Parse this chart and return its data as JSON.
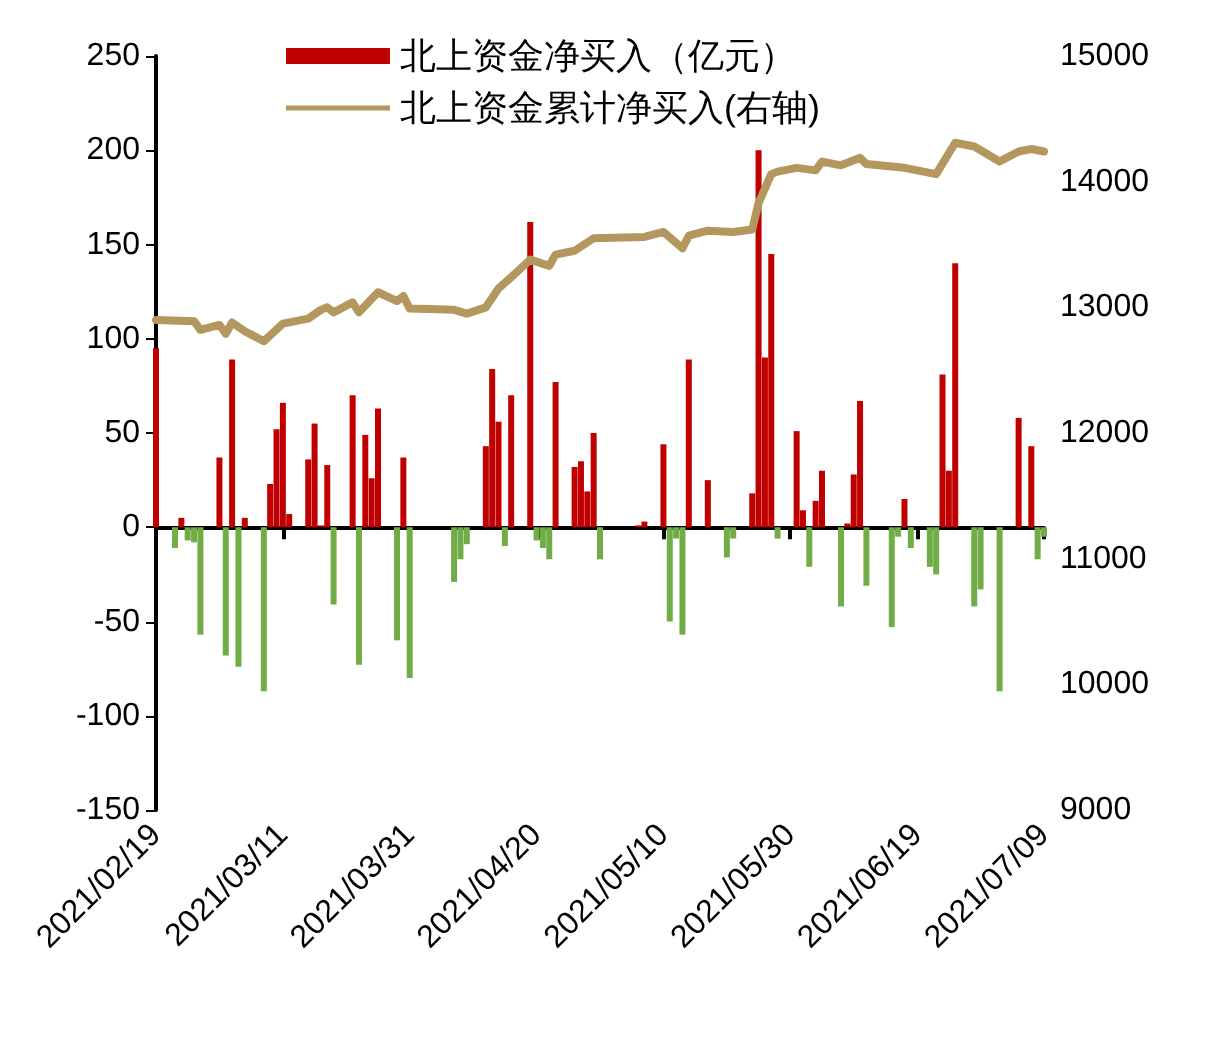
{
  "chart_data": {
    "type": "bar",
    "series": [
      {
        "name": "北上资金净买入（亿元）",
        "color": "#c00000",
        "x": [
          "2021-02-19",
          "2021-02-23",
          "2021-03-01",
          "2021-03-03",
          "2021-03-05",
          "2021-03-09",
          "2021-03-10",
          "2021-03-11",
          "2021-03-12",
          "2021-03-15",
          "2021-03-16",
          "2021-03-17",
          "2021-03-18",
          "2021-03-22",
          "2021-03-24",
          "2021-03-25",
          "2021-03-26",
          "2021-03-30",
          "2021-04-12",
          "2021-04-13",
          "2021-04-14",
          "2021-04-16",
          "2021-04-19",
          "2021-04-23",
          "2021-04-26",
          "2021-04-27",
          "2021-04-28",
          "2021-04-29",
          "2021-05-06",
          "2021-05-07",
          "2021-05-10",
          "2021-05-14",
          "2021-05-17",
          "2021-05-24",
          "2021-05-25",
          "2021-05-26",
          "2021-05-27",
          "2021-05-31",
          "2021-06-01",
          "2021-06-03",
          "2021-06-04",
          "2021-06-08",
          "2021-06-09",
          "2021-06-10",
          "2021-06-17",
          "2021-06-23",
          "2021-06-24",
          "2021-06-25",
          "2021-07-05",
          "2021-07-07"
        ],
        "values": [
          95,
          5,
          37,
          89,
          5,
          23,
          52,
          66,
          7,
          36,
          55,
          1,
          33,
          70,
          49,
          26,
          63,
          37,
          43,
          84,
          56,
          70,
          162,
          77,
          32,
          35,
          19,
          50,
          1,
          3,
          44,
          89,
          25,
          18,
          200,
          90,
          145,
          51,
          9,
          14,
          30,
          2,
          28,
          67,
          15,
          81,
          30,
          140,
          58,
          43
        ]
      },
      {
        "color": "#70ad47",
        "x": [
          "2021-02-22",
          "2021-02-24",
          "2021-02-25",
          "2021-02-26",
          "2021-03-02",
          "2021-03-04",
          "2021-03-08",
          "2021-03-19",
          "2021-03-23",
          "2021-03-29",
          "2021-03-31",
          "2021-04-07",
          "2021-04-08",
          "2021-04-09",
          "2021-04-15",
          "2021-04-20",
          "2021-04-21",
          "2021-04-22",
          "2021-04-30",
          "2021-05-11",
          "2021-05-12",
          "2021-05-13",
          "2021-05-20",
          "2021-05-21",
          "2021-05-28",
          "2021-06-02",
          "2021-06-07",
          "2021-06-11",
          "2021-06-15",
          "2021-06-16",
          "2021-06-18",
          "2021-06-21",
          "2021-06-22",
          "2021-06-28",
          "2021-06-29",
          "2021-07-02",
          "2021-07-08",
          "2021-07-09"
        ],
        "values": [
          -11,
          -7,
          -8,
          -57,
          -68,
          -74,
          -87,
          -41,
          -73,
          -60,
          -80,
          -29,
          -17,
          -9,
          -10,
          -7,
          -11,
          -17,
          -17,
          -50,
          -6,
          -57,
          -16,
          -6,
          -6,
          -21,
          -42,
          -31,
          -53,
          -5,
          -11,
          -21,
          -25,
          -42,
          -33,
          -87,
          -17,
          -5
        ]
      },
      {
        "name": "北上资金累计净买入(右轴)",
        "type": "line",
        "axis": "y2",
        "color": "#b4965f",
        "x": [
          "2021-02-19",
          "2021-02-25",
          "2021-02-26",
          "2021-03-01",
          "2021-03-02",
          "2021-03-03",
          "2021-03-05",
          "2021-03-08",
          "2021-03-11",
          "2021-03-15",
          "2021-03-17",
          "2021-03-18",
          "2021-03-19",
          "2021-03-22",
          "2021-03-23",
          "2021-03-26",
          "2021-03-29",
          "2021-03-30",
          "2021-03-31",
          "2021-04-07",
          "2021-04-09",
          "2021-04-12",
          "2021-04-14",
          "2021-04-16",
          "2021-04-19",
          "2021-04-22",
          "2021-04-23",
          "2021-04-26",
          "2021-04-29",
          "2021-05-07",
          "2021-05-10",
          "2021-05-13",
          "2021-05-14",
          "2021-05-17",
          "2021-05-21",
          "2021-05-24",
          "2021-05-25",
          "2021-05-27",
          "2021-05-28",
          "2021-05-31",
          "2021-06-03",
          "2021-06-04",
          "2021-06-07",
          "2021-06-10",
          "2021-06-11",
          "2021-06-17",
          "2021-06-22",
          "2021-06-25",
          "2021-06-28",
          "2021-07-02",
          "2021-07-05",
          "2021-07-07",
          "2021-07-09"
        ],
        "values": [
          12900,
          12890,
          12820,
          12860,
          12790,
          12880,
          12810,
          12730,
          12870,
          12910,
          12980,
          13000,
          12960,
          13040,
          12960,
          13120,
          13050,
          13090,
          12990,
          12980,
          12950,
          13000,
          13150,
          13240,
          13380,
          13330,
          13420,
          13450,
          13550,
          13560,
          13600,
          13470,
          13570,
          13610,
          13600,
          13620,
          13830,
          14060,
          14080,
          14110,
          14090,
          14160,
          14130,
          14190,
          14140,
          14110,
          14060,
          14310,
          14280,
          14160,
          14240,
          14260,
          14240
        ]
      }
    ],
    "xlim": [
      "2021-02-19",
      "2021-07-09"
    ],
    "xticks": [
      {
        "value": "2021-02-19",
        "label": "2021/02/19"
      },
      {
        "value": "2021-03-11",
        "label": "2021/03/11"
      },
      {
        "value": "2021-03-31",
        "label": "2021/03/31"
      },
      {
        "value": "2021-04-20",
        "label": "2021/04/20"
      },
      {
        "value": "2021-05-10",
        "label": "2021/05/10"
      },
      {
        "value": "2021-05-30",
        "label": "2021/05/30"
      },
      {
        "value": "2021-06-19",
        "label": "2021/06/19"
      },
      {
        "value": "2021-07-09",
        "label": "2021/07/09"
      }
    ],
    "ylim": [
      -150,
      250
    ],
    "yticks": [
      -150,
      -100,
      -50,
      0,
      50,
      100,
      150,
      200,
      250
    ],
    "y2lim": [
      9000,
      15000
    ],
    "y2ticks": [
      9000,
      10000,
      11000,
      12000,
      13000,
      14000,
      15000
    ],
    "legend": "top",
    "marker": "none",
    "line_style": "solid"
  }
}
